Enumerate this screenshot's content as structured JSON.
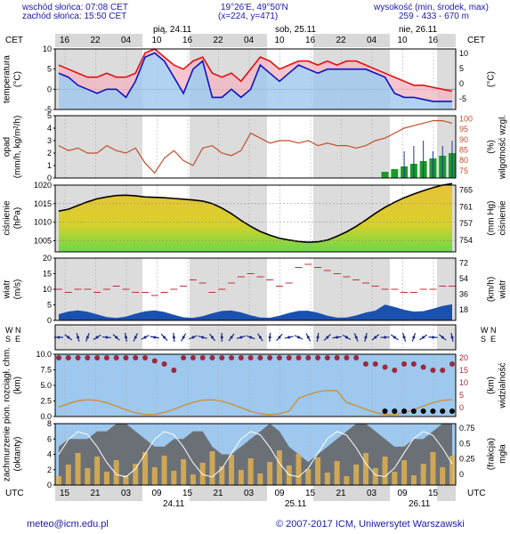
{
  "header": {
    "sunrise": "wschód słońca: 07:08 CET",
    "sunset": "zachód słońca: 15:50 CET",
    "coords": "19°26'E, 49°50'N",
    "grid": "(x=224, y=471)",
    "altitude_label": "wysokość (min, środek, max)",
    "altitude_values": "259 - 433 - 670 m"
  },
  "top_axis": {
    "tz": "CET",
    "hours": [
      "16",
      "22",
      "04",
      "10",
      "16",
      "22",
      "04",
      "10",
      "16",
      "22",
      "04",
      "10",
      "16"
    ],
    "days": [
      "pią, 24.11",
      "sob, 25.11",
      "nie, 26.11"
    ]
  },
  "bottom_axis": {
    "tz": "UTC",
    "hours": [
      "15",
      "21",
      "03",
      "09",
      "15",
      "21",
      "03",
      "09",
      "15",
      "21",
      "03",
      "09",
      "15"
    ],
    "dates": [
      "24.11",
      "25.11",
      "26.11"
    ]
  },
  "panel_labels": {
    "temp_l": "temperatura",
    "temp_lu": "(°C)",
    "temp_r": "(°C)",
    "precip_l": "opad",
    "precip_lu": "(mm/h, kg/m²/h)",
    "precip_r": "wilgotność wzgl.",
    "precip_ru": "(%)",
    "press_l": "ciśnienie",
    "press_lu": "(hPa)",
    "press_r": "ciśnienie",
    "press_ru": "(mm Hg)",
    "wind_l": "wiatr",
    "wind_lu": "(m/s)",
    "wind_r": "wiatr",
    "wind_ru": "(km/h)",
    "dir_w": "W",
    "dir_n": "N",
    "dir_s": "S",
    "dir_e": "E",
    "vis_l": "pion. rozciągł. chm.",
    "vis_lu": "(km)",
    "vis_r": "widzialność",
    "vis_ru": "(km)",
    "cloud_l": "zachmurzenie",
    "cloud_lu": "(oktanty)",
    "cloud_r": "mgła",
    "cloud_ru": "(frakcja)"
  },
  "footer": {
    "email": "meteo@icm.edu.pl",
    "copyright": "© 2007-2017 ICM, Uniwersytet Warszawski"
  },
  "chart_data": [
    {
      "type": "line",
      "name": "temperatura",
      "ylim": [
        -5,
        10
      ],
      "yticks_left": [
        "10",
        "5",
        "0",
        "-5"
      ],
      "yticks_right": [
        "10",
        "5",
        "0",
        "-5"
      ],
      "series": [
        {
          "name": "max",
          "values": [
            6,
            5,
            4,
            3,
            3,
            4,
            3,
            3,
            4,
            9,
            10,
            8,
            6,
            5,
            7,
            8,
            4,
            3,
            4,
            2,
            5,
            8,
            7,
            5,
            6,
            7,
            7,
            6,
            7,
            6,
            7,
            7,
            6,
            5,
            4,
            3,
            2,
            1,
            1,
            0.5,
            0,
            -0.5
          ]
        },
        {
          "name": "min",
          "values": [
            4,
            3,
            1,
            0,
            -1,
            0,
            0,
            -2,
            2,
            8,
            9,
            7,
            3,
            -1,
            5,
            7,
            -2,
            -2,
            0,
            -2,
            0,
            6,
            4,
            2,
            4,
            6,
            5,
            4,
            5,
            5,
            5,
            5,
            5,
            4,
            3,
            -1,
            -2,
            -2,
            -2.5,
            -3,
            -3,
            -3
          ]
        }
      ]
    },
    {
      "type": "line",
      "name": "opad",
      "ylim": [
        0,
        5
      ],
      "yticks_left": [
        "5",
        "4",
        "3",
        "2",
        "1",
        "0"
      ],
      "yticks_right": [
        "100",
        "95",
        "90",
        "85",
        "80",
        "75"
      ],
      "series": [
        {
          "name": "wilgotność",
          "values": [
            88,
            86,
            87,
            85,
            85,
            88,
            86,
            85,
            87,
            81,
            77,
            83,
            86,
            82,
            80,
            87,
            88,
            85,
            84,
            86,
            93,
            91,
            89,
            90,
            90,
            89,
            90,
            88,
            89,
            88,
            88,
            87,
            88,
            90,
            91,
            93,
            95,
            96,
            97,
            98,
            98,
            97
          ]
        }
      ]
    },
    {
      "type": "area",
      "name": "ciśnienie",
      "ylim": [
        1002,
        1020
      ],
      "yticks_left": [
        "1020",
        "1015",
        "1010",
        "1005"
      ],
      "yticks_right": [
        "765",
        "761",
        "757",
        "754"
      ],
      "series": [
        {
          "name": "ciśnienie",
          "values": [
            1013,
            1013.5,
            1014.5,
            1015.5,
            1016.3,
            1016.8,
            1017.2,
            1017.3,
            1017.1,
            1016.8,
            1016.7,
            1016.6,
            1016.4,
            1016.2,
            1016,
            1015.7,
            1015,
            1013.8,
            1012.3,
            1010.5,
            1008.9,
            1007.5,
            1006.5,
            1005.7,
            1005.2,
            1004.8,
            1004.6,
            1004.7,
            1005.2,
            1006.2,
            1007.4,
            1008.9,
            1010.6,
            1012.4,
            1014,
            1015.4,
            1016.6,
            1017.6,
            1018.5,
            1019.3,
            1020,
            1020.4
          ]
        }
      ]
    },
    {
      "type": "line",
      "name": "wiatr",
      "ylim": [
        0,
        20
      ],
      "yticks_left": [
        "20",
        "15",
        "10",
        "5",
        "0"
      ],
      "yticks_right": [
        "72",
        "54",
        "36",
        "18"
      ],
      "series": [
        {
          "name": "porywy",
          "values": [
            10,
            9,
            10,
            10,
            9,
            10,
            11,
            10,
            9,
            9,
            8,
            9,
            10,
            11,
            13,
            12,
            9,
            10,
            12,
            14,
            15,
            14,
            13,
            11,
            12,
            17,
            18,
            17,
            16,
            15,
            14,
            13,
            12,
            11,
            10,
            10,
            9,
            9,
            10,
            10,
            11,
            11
          ]
        }
      ]
    },
    {
      "type": "line",
      "name": "widzialność",
      "ylim": [
        0,
        10
      ],
      "yticks_left": [
        "10.0",
        "7.5",
        "5.0",
        "2.5",
        "0.0"
      ],
      "yticks_right": [
        "20",
        "15",
        "10",
        "5",
        "0"
      ],
      "series": [
        {
          "name": "widzialność",
          "values": [
            10,
            10,
            10,
            10,
            10,
            10,
            10,
            10,
            10,
            10,
            9.5,
            9,
            8,
            10,
            10,
            10,
            10,
            10,
            10,
            10,
            10,
            10,
            10,
            10,
            10,
            10,
            10,
            10,
            10,
            10,
            10,
            10,
            9,
            9,
            8.5,
            8,
            9,
            9,
            8.5,
            8,
            8,
            9
          ]
        }
      ]
    },
    {
      "type": "area",
      "name": "zachmurzenie",
      "ylim": [
        0,
        8
      ],
      "yticks_left": [
        "8",
        "6",
        "4",
        "2",
        "0"
      ],
      "yticks_right": [
        "0.75",
        "0.5",
        "0.25",
        "0"
      ],
      "series": [
        {
          "name": "zachmurzenie",
          "values": [
            5,
            6,
            6,
            6,
            7,
            7,
            8,
            8,
            7,
            6,
            5,
            5,
            6,
            6,
            7,
            7,
            5,
            4,
            4,
            5,
            6,
            7,
            8,
            7,
            5,
            4,
            3,
            4,
            5,
            6,
            7,
            8,
            8,
            7,
            6,
            5,
            5,
            6,
            6,
            7,
            8,
            8
          ]
        }
      ]
    }
  ]
}
